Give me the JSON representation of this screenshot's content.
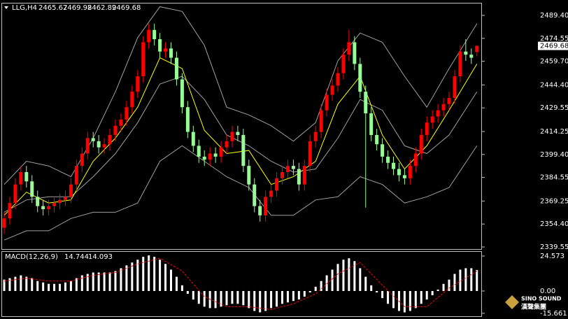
{
  "chart_data": [
    {
      "type": "candlestick",
      "symbol": "LLG,H4",
      "open": [
        2352,
        2358,
        2368,
        2380,
        2388,
        2382,
        2372,
        2366,
        2364,
        2366,
        2368,
        2370,
        2372,
        2380,
        2392,
        2400,
        2410,
        2408,
        2404,
        2406,
        2412,
        2418,
        2422,
        2430,
        2440,
        2450,
        2472,
        2480,
        2474,
        2466,
        2468,
        2462,
        2448,
        2430,
        2414,
        2405,
        2398,
        2396,
        2400,
        2398,
        2404,
        2408,
        2414,
        2412,
        2392,
        2380,
        2366,
        2360,
        2372,
        2376,
        2384,
        2388,
        2392,
        2390,
        2380,
        2392,
        2408,
        2414,
        2428,
        2438,
        2444,
        2452,
        2464,
        2472,
        2458,
        2440,
        2426,
        2412,
        2406,
        2398,
        2394,
        2390,
        2386,
        2384,
        2392,
        2400,
        2412,
        2420,
        2424,
        2428,
        2432,
        2436,
        2450,
        2466,
        2464,
        2465.67
      ],
      "high": [
        2362,
        2372,
        2384,
        2392,
        2392,
        2386,
        2376,
        2370,
        2370,
        2372,
        2374,
        2376,
        2384,
        2396,
        2404,
        2414,
        2414,
        2412,
        2410,
        2416,
        2422,
        2426,
        2434,
        2444,
        2454,
        2476,
        2484,
        2484,
        2478,
        2472,
        2472,
        2466,
        2452,
        2434,
        2418,
        2409,
        2402,
        2404,
        2404,
        2408,
        2412,
        2418,
        2418,
        2416,
        2396,
        2384,
        2370,
        2376,
        2380,
        2388,
        2392,
        2396,
        2396,
        2394,
        2396,
        2412,
        2418,
        2432,
        2442,
        2448,
        2456,
        2468,
        2480,
        2476,
        2462,
        2444,
        2430,
        2416,
        2410,
        2402,
        2398,
        2394,
        2390,
        2396,
        2404,
        2416,
        2424,
        2428,
        2432,
        2436,
        2440,
        2454,
        2470,
        2474,
        2468,
        2469.98
      ],
      "low": [
        2348,
        2354,
        2364,
        2376,
        2378,
        2368,
        2362,
        2360,
        2360,
        2362,
        2364,
        2366,
        2368,
        2376,
        2388,
        2396,
        2404,
        2400,
        2400,
        2402,
        2408,
        2414,
        2418,
        2426,
        2436,
        2446,
        2468,
        2470,
        2462,
        2462,
        2458,
        2444,
        2426,
        2410,
        2401,
        2394,
        2392,
        2392,
        2394,
        2394,
        2400,
        2404,
        2408,
        2388,
        2376,
        2362,
        2356,
        2356,
        2368,
        2372,
        2380,
        2384,
        2386,
        2376,
        2376,
        2388,
        2404,
        2410,
        2424,
        2434,
        2440,
        2448,
        2460,
        2454,
        2436,
        2365,
        2408,
        2402,
        2394,
        2390,
        2386,
        2382,
        2380,
        2380,
        2388,
        2396,
        2408,
        2416,
        2420,
        2424,
        2428,
        2432,
        2446,
        2460,
        2458,
        2462.89
      ],
      "close": [
        2358,
        2368,
        2380,
        2388,
        2382,
        2372,
        2366,
        2364,
        2366,
        2368,
        2370,
        2372,
        2380,
        2392,
        2400,
        2410,
        2408,
        2404,
        2406,
        2412,
        2418,
        2422,
        2430,
        2440,
        2450,
        2472,
        2480,
        2474,
        2466,
        2468,
        2462,
        2448,
        2430,
        2414,
        2405,
        2398,
        2396,
        2400,
        2398,
        2404,
        2408,
        2414,
        2412,
        2392,
        2380,
        2366,
        2360,
        2372,
        2376,
        2384,
        2388,
        2392,
        2390,
        2380,
        2392,
        2408,
        2414,
        2428,
        2438,
        2444,
        2452,
        2464,
        2472,
        2458,
        2440,
        2426,
        2412,
        2406,
        2398,
        2394,
        2390,
        2386,
        2384,
        2392,
        2400,
        2412,
        2420,
        2424,
        2428,
        2432,
        2436,
        2450,
        2466,
        2464,
        2462,
        2469.68
      ],
      "up_color": "#ff0000",
      "down_color": "#98fb98",
      "ylim": [
        2338.2,
        2497.1
      ],
      "yticks": [
        {
          "value": 2489.4,
          "label": "2489.40"
        },
        {
          "value": 2474.55,
          "label": "2474.55"
        },
        {
          "value": 2459.7,
          "label": "2459.70"
        },
        {
          "value": 2444.4,
          "label": "2444.40"
        },
        {
          "value": 2429.55,
          "label": "2429.55"
        },
        {
          "value": 2414.25,
          "label": "2414.25"
        },
        {
          "value": 2399.4,
          "label": "2399.40"
        },
        {
          "value": 2384.55,
          "label": "2384.55"
        },
        {
          "value": 2369.25,
          "label": "2369.25"
        },
        {
          "value": 2354.4,
          "label": "2354.40"
        },
        {
          "value": 2339.55,
          "label": "2339.55"
        }
      ],
      "lines": [
        {
          "color": "#a0a0a0",
          "x": [
            0,
            4,
            8,
            12,
            16,
            20,
            24,
            28,
            32,
            36,
            40,
            44,
            48,
            52,
            56,
            60,
            64,
            68,
            72,
            76,
            80,
            85
          ],
          "values": [
            2380,
            2395,
            2392,
            2385,
            2410,
            2440,
            2475,
            2495,
            2492,
            2470,
            2430,
            2425,
            2418,
            2408,
            2420,
            2460,
            2478,
            2472,
            2450,
            2430,
            2455,
            2484
          ]
        },
        {
          "color": "#a0a0a0",
          "x": [
            0,
            4,
            8,
            12,
            16,
            20,
            24,
            28,
            32,
            36,
            40,
            44,
            48,
            52,
            56,
            60,
            64,
            68,
            72,
            76,
            80,
            85
          ],
          "values": [
            2362,
            2370,
            2372,
            2372,
            2385,
            2400,
            2420,
            2445,
            2450,
            2435,
            2412,
            2405,
            2395,
            2388,
            2390,
            2410,
            2435,
            2428,
            2405,
            2400,
            2412,
            2440
          ]
        },
        {
          "color": "#a0a0a0",
          "x": [
            0,
            4,
            8,
            12,
            16,
            20,
            24,
            28,
            32,
            36,
            40,
            44,
            48,
            52,
            56,
            60,
            64,
            68,
            72,
            76,
            80,
            85
          ],
          "values": [
            2344,
            2350,
            2350,
            2358,
            2362,
            2362,
            2368,
            2395,
            2405,
            2395,
            2385,
            2378,
            2360,
            2360,
            2370,
            2372,
            2385,
            2380,
            2368,
            2372,
            2378,
            2405
          ]
        },
        {
          "color": "#ffff00",
          "x": [
            0,
            4,
            8,
            12,
            16,
            20,
            24,
            28,
            32,
            36,
            40,
            44,
            48,
            52,
            56,
            60,
            64,
            68,
            72,
            76,
            80,
            85
          ],
          "values": [
            2360,
            2375,
            2368,
            2370,
            2395,
            2410,
            2430,
            2462,
            2455,
            2415,
            2400,
            2402,
            2380,
            2385,
            2395,
            2432,
            2450,
            2412,
            2390,
            2405,
            2428,
            2458
          ]
        }
      ]
    },
    {
      "type": "macd",
      "title": "MACD(12,26,9)",
      "color": "#ffffff",
      "values": [
        8,
        9,
        10,
        11,
        10,
        9,
        7,
        6,
        5,
        5,
        5,
        6,
        7,
        9,
        11,
        12,
        13,
        13,
        13,
        13,
        14,
        16,
        18,
        20,
        22,
        24,
        25,
        24,
        22,
        19,
        15,
        10,
        4,
        -2,
        -6,
        -9,
        -11,
        -12,
        -12,
        -11,
        -10,
        -9,
        -9,
        -10,
        -12,
        -14,
        -15,
        -14,
        -12,
        -11,
        -9,
        -8,
        -7,
        -6,
        -4,
        -1,
        3,
        7,
        11,
        15,
        19,
        22,
        23,
        21,
        16,
        10,
        4,
        -1,
        -5,
        -9,
        -12,
        -14,
        -15,
        -14,
        -12,
        -9,
        -6,
        -3,
        1,
        5,
        8,
        12,
        15,
        16,
        16,
        14.744
      ],
      "signal": {
        "color": "#ff0000",
        "x": [
          0,
          4,
          8,
          12,
          16,
          20,
          24,
          28,
          32,
          36,
          40,
          44,
          48,
          52,
          56,
          60,
          64,
          68,
          72,
          76,
          80,
          85
        ],
        "values": [
          7,
          9,
          7,
          7,
          11,
          13,
          19,
          23,
          14,
          -4,
          -11,
          -11,
          -13,
          -9,
          -2,
          12,
          20,
          4,
          -11,
          -11,
          2,
          14.093
        ]
      },
      "ylim": [
        -17.7,
        27.5
      ],
      "yticks": [
        24.573,
        {
          "value": 0,
          "label": "0.00"
        },
        -15.661
      ]
    }
  ],
  "logo": {
    "name": "SINO SOUND",
    "chinese": "漢聲集團"
  }
}
